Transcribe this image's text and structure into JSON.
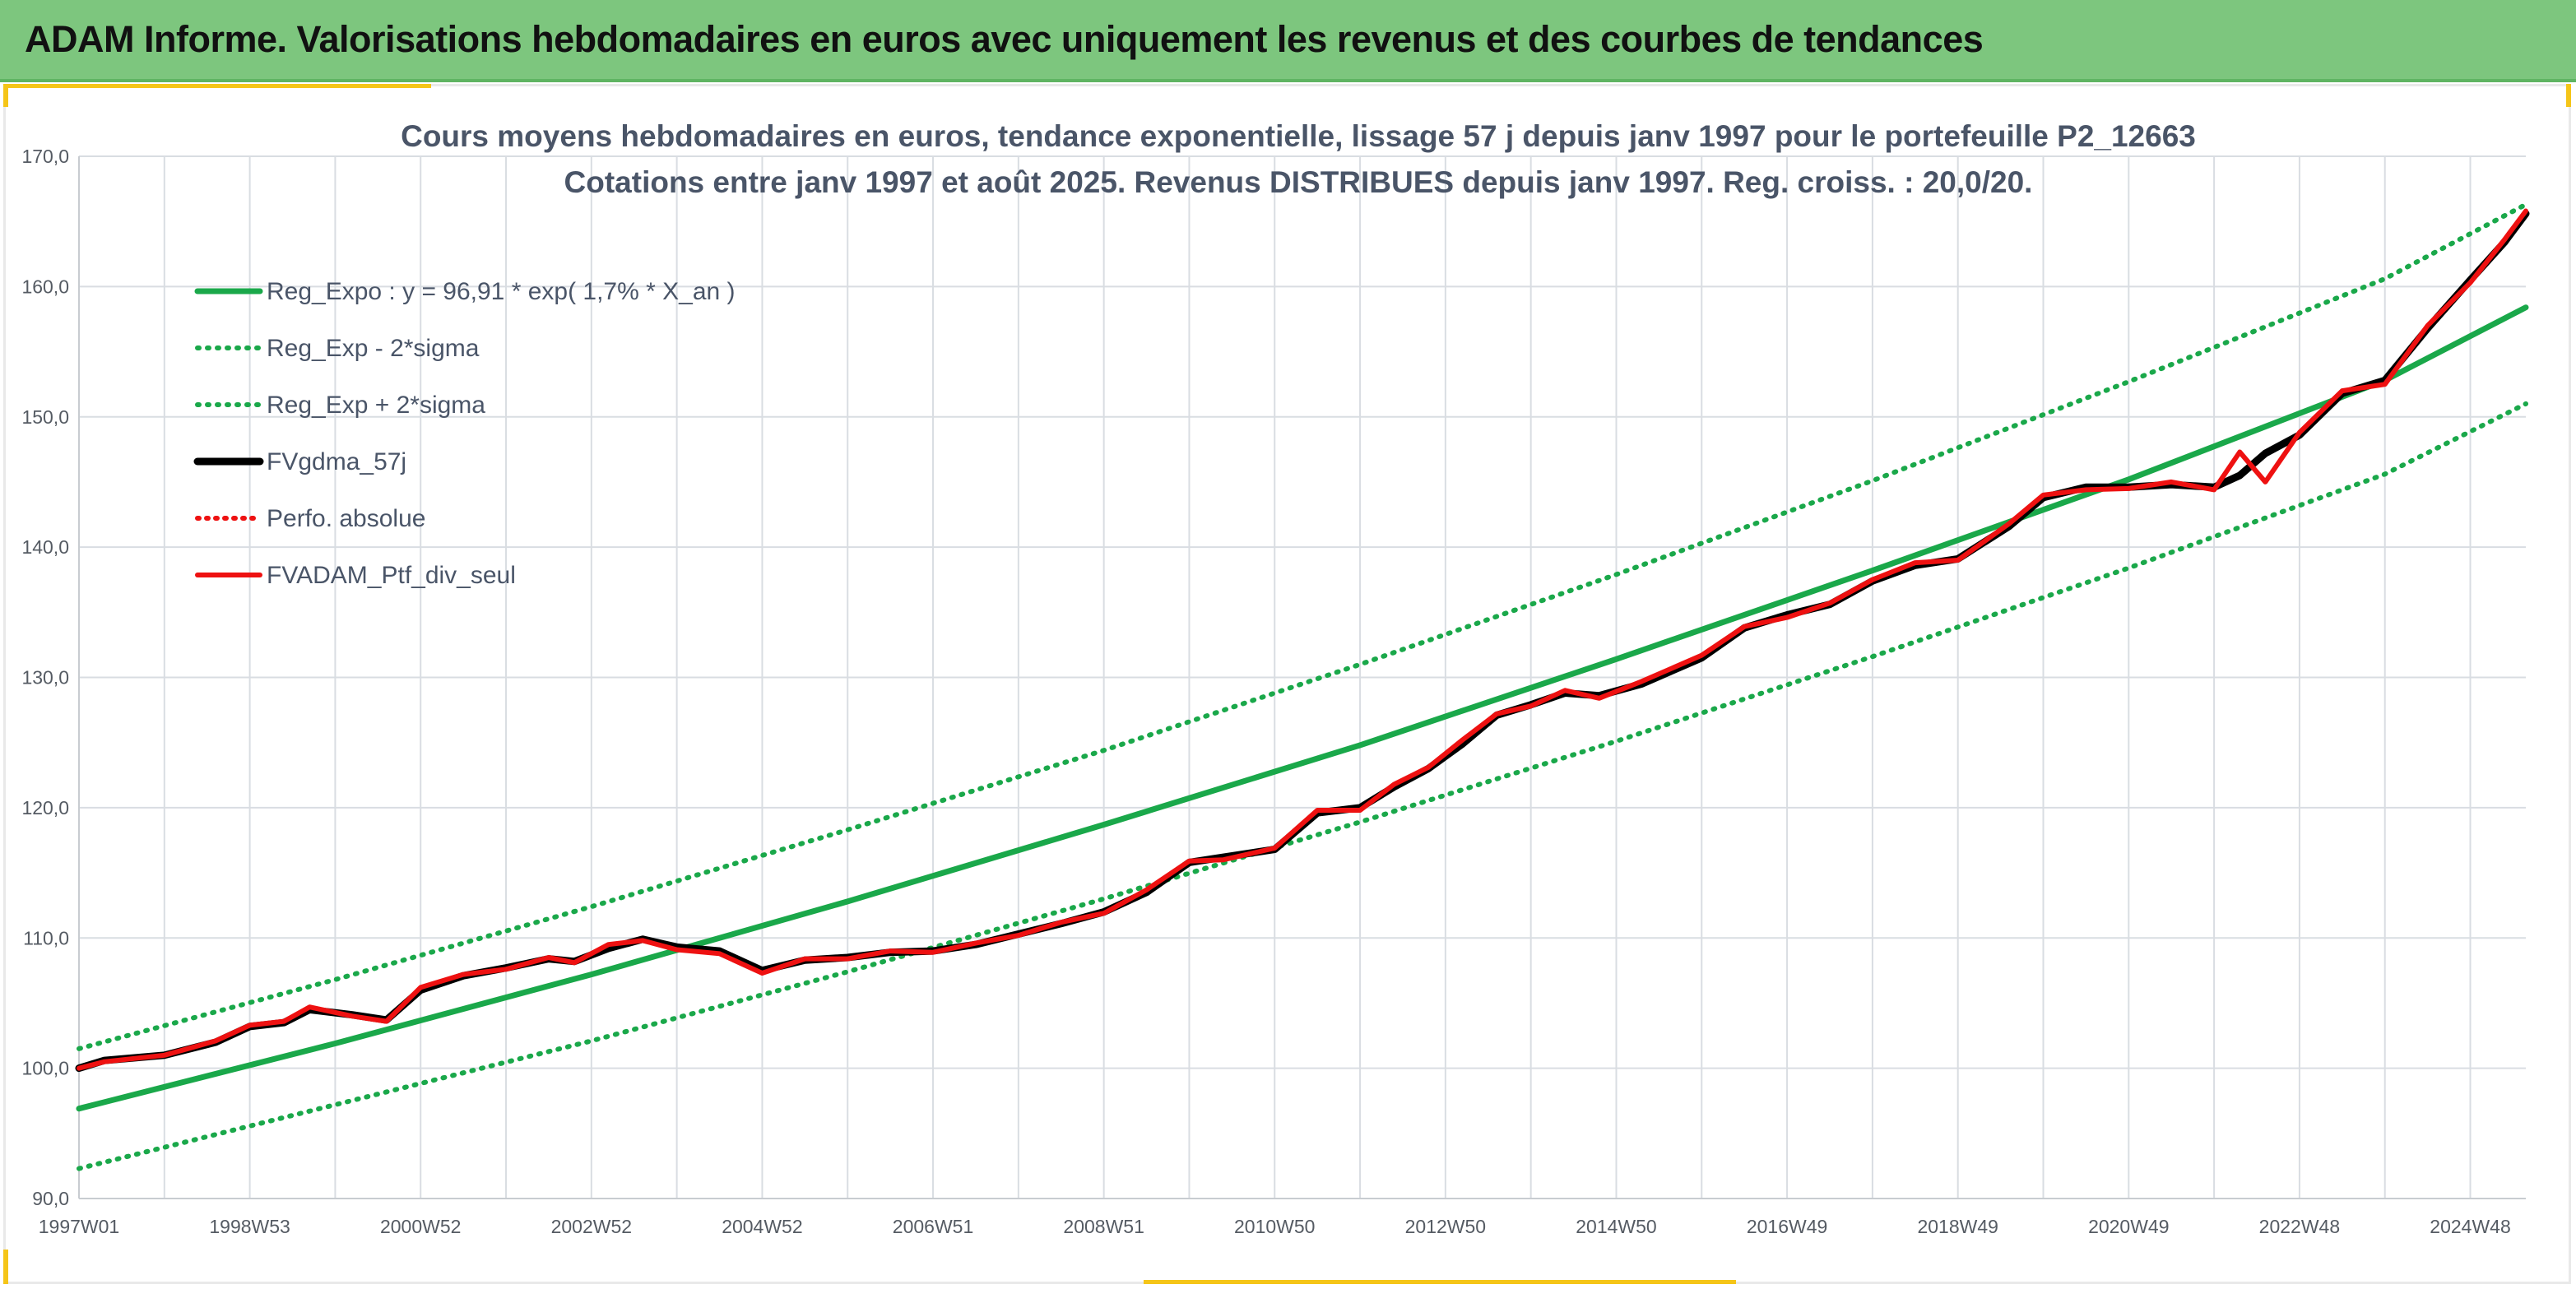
{
  "header": {
    "title": "ADAM Informe. Valorisations hebdomadaires en euros avec uniquement les revenus et des courbes de tendances"
  },
  "colors": {
    "header_bg": "#7dc67e",
    "green": "#1aa84a",
    "red": "#ee1111",
    "black": "#000000",
    "grid": "#d9dde2",
    "accent": "#f5c518"
  },
  "chart_data": {
    "type": "line",
    "title": "Cours moyens hebdomadaires en euros, tendance exponentielle, lissage 57 j depuis janv 1997 pour le portefeuille P2_12663",
    "subtitle": "Cotations entre janv 1997 et août 2025. Revenus DISTRIBUES depuis janv 1997. Reg. croiss. : 20,0/20.",
    "xlabel": "",
    "ylabel": "",
    "ylim": [
      90,
      170
    ],
    "yticks": [
      "90,0",
      "100,0",
      "110,0",
      "120,0",
      "130,0",
      "140,0",
      "150,0",
      "160,0",
      "170,0"
    ],
    "xlim": [
      1997.0,
      2025.65
    ],
    "xticks": [
      {
        "label": "1997W01",
        "x": 1997.0
      },
      {
        "label": "1998W53",
        "x": 1999.0
      },
      {
        "label": "2000W52",
        "x": 2001.0
      },
      {
        "label": "2002W52",
        "x": 2003.0
      },
      {
        "label": "2004W52",
        "x": 2005.0
      },
      {
        "label": "2006W51",
        "x": 2007.0
      },
      {
        "label": "2008W51",
        "x": 2009.0
      },
      {
        "label": "2010W50",
        "x": 2011.0
      },
      {
        "label": "2012W50",
        "x": 2013.0
      },
      {
        "label": "2014W50",
        "x": 2015.0
      },
      {
        "label": "2016W49",
        "x": 2017.0
      },
      {
        "label": "2018W49",
        "x": 2019.0
      },
      {
        "label": "2020W49",
        "x": 2021.0
      },
      {
        "label": "2022W48",
        "x": 2023.0
      },
      {
        "label": "2024W48",
        "x": 2025.0
      }
    ],
    "grid": true,
    "legend_position": "top-left",
    "series": [
      {
        "name": "Reg_Expo : y = 96,91 * exp( 1,7% *  X_an )",
        "style": "solid-green",
        "x": [
          1997.0,
          2000.0,
          2003.0,
          2006.0,
          2009.0,
          2012.0,
          2015.0,
          2018.0,
          2021.0,
          2024.0,
          2025.65
        ],
        "values": [
          96.9,
          101.9,
          107.2,
          112.8,
          118.7,
          124.8,
          131.4,
          138.2,
          145.2,
          152.8,
          158.4
        ]
      },
      {
        "name": "Reg_Exp - 2*sigma",
        "style": "dotted-green",
        "x": [
          1997.0,
          2000.0,
          2003.0,
          2006.0,
          2009.0,
          2012.0,
          2015.0,
          2018.0,
          2021.0,
          2024.0,
          2025.65
        ],
        "values": [
          92.3,
          97.2,
          102.1,
          107.4,
          113.0,
          118.9,
          125.1,
          131.6,
          138.4,
          145.6,
          151.0
        ]
      },
      {
        "name": "Reg_Exp + 2*sigma",
        "style": "dotted-green",
        "x": [
          1997.0,
          2000.0,
          2003.0,
          2006.0,
          2009.0,
          2012.0,
          2015.0,
          2018.0,
          2021.0,
          2024.0,
          2025.65
        ],
        "values": [
          101.5,
          106.8,
          112.4,
          118.3,
          124.4,
          131.0,
          137.9,
          145.1,
          152.7,
          160.6,
          166.3
        ]
      },
      {
        "name": "FVgdma_57j",
        "style": "solid-black",
        "x": [
          1997.0,
          1997.3,
          1998.0,
          1998.6,
          1999.0,
          1999.4,
          1999.7,
          2000.2,
          2000.6,
          2001.0,
          2001.5,
          2002.0,
          2002.5,
          2002.8,
          2003.2,
          2003.6,
          2004.0,
          2004.5,
          2005.0,
          2005.5,
          2006.0,
          2006.5,
          2007.0,
          2007.5,
          2008.0,
          2008.5,
          2009.0,
          2009.5,
          2010.0,
          2010.4,
          2011.0,
          2011.5,
          2012.0,
          2012.4,
          2012.8,
          2013.2,
          2013.6,
          2014.0,
          2014.4,
          2014.8,
          2015.3,
          2016.0,
          2016.5,
          2017.0,
          2017.5,
          2018.0,
          2018.5,
          2019.0,
          2019.6,
          2020.0,
          2020.5,
          2021.0,
          2021.5,
          2022.0,
          2022.3,
          2022.6,
          2023.0,
          2023.5,
          2024.0,
          2024.5,
          2025.0,
          2025.4,
          2025.65
        ],
        "values": [
          100.0,
          100.6,
          101.0,
          102.0,
          103.2,
          103.5,
          104.5,
          104.1,
          103.7,
          106.0,
          107.1,
          107.7,
          108.4,
          108.2,
          109.2,
          109.9,
          109.3,
          109.0,
          107.5,
          108.3,
          108.5,
          108.9,
          109.0,
          109.5,
          110.3,
          111.1,
          112.0,
          113.5,
          115.8,
          116.2,
          116.8,
          119.6,
          120.0,
          121.6,
          123.0,
          124.9,
          127.1,
          127.9,
          128.8,
          128.6,
          129.5,
          131.5,
          133.8,
          134.8,
          135.6,
          137.4,
          138.6,
          139.1,
          141.6,
          143.8,
          144.6,
          144.6,
          144.8,
          144.6,
          145.5,
          147.2,
          148.6,
          151.8,
          152.8,
          156.8,
          160.5,
          163.4,
          165.6
        ]
      },
      {
        "name": "Perfo. absolue",
        "style": "dotted-red",
        "values": []
      },
      {
        "name": "FVADAM_Ptf_div_seul",
        "style": "solid-red",
        "x": [
          1997.0,
          1997.3,
          1998.0,
          1998.6,
          1999.0,
          1999.4,
          1999.7,
          2000.2,
          2000.6,
          2001.0,
          2001.5,
          2002.0,
          2002.5,
          2002.8,
          2003.2,
          2003.6,
          2004.0,
          2004.5,
          2005.0,
          2005.5,
          2006.0,
          2006.5,
          2007.0,
          2007.5,
          2008.0,
          2008.5,
          2009.0,
          2009.5,
          2010.0,
          2010.4,
          2011.0,
          2011.5,
          2012.0,
          2012.4,
          2012.8,
          2013.2,
          2013.6,
          2014.0,
          2014.4,
          2014.8,
          2015.3,
          2016.0,
          2016.5,
          2017.0,
          2017.5,
          2018.0,
          2018.5,
          2019.0,
          2019.6,
          2020.0,
          2020.5,
          2021.0,
          2021.5,
          2022.0,
          2022.3,
          2022.6,
          2023.0,
          2023.5,
          2024.0,
          2024.5,
          2025.0,
          2025.4,
          2025.65
        ],
        "values": [
          100.0,
          100.5,
          101.0,
          102.1,
          103.3,
          103.6,
          104.7,
          104.0,
          103.6,
          106.2,
          107.2,
          107.6,
          108.5,
          108.1,
          109.5,
          109.8,
          109.1,
          108.8,
          107.3,
          108.4,
          108.4,
          109.0,
          108.9,
          109.6,
          110.2,
          111.2,
          111.9,
          113.7,
          115.9,
          116.0,
          116.9,
          119.8,
          119.8,
          121.8,
          123.1,
          125.2,
          127.2,
          127.8,
          129.0,
          128.4,
          129.7,
          131.7,
          133.9,
          134.6,
          135.7,
          137.5,
          138.8,
          139.0,
          141.8,
          144.0,
          144.4,
          144.5,
          145.0,
          144.4,
          147.3,
          145.0,
          148.8,
          152.0,
          152.5,
          157.0,
          160.3,
          163.6,
          165.8
        ]
      }
    ]
  }
}
